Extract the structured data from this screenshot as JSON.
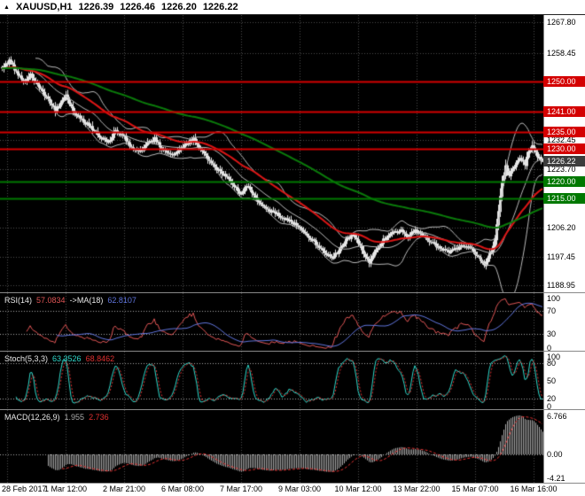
{
  "window": {
    "icon": "▲",
    "symbol": "XAUUSD,H1",
    "open": "1226.39",
    "high": "1226.46",
    "low": "1226.20",
    "close": "1226.22"
  },
  "colors": {
    "background": "#000000",
    "grid": "#4A4A4A",
    "axis_bg": "#FFFFFF",
    "axis_text": "#000000",
    "candle": "#E6E6E6",
    "bollinger": "#B8B8B8",
    "ema_fast": "#DD1515",
    "ema_slow": "#0A7A0A",
    "resistance": "#D40000",
    "support": "#007800",
    "tag_resistance": "#D40000",
    "tag_support": "#007800",
    "tag_current": "#3C3C3C",
    "level_line": "#A8A8A8",
    "rsi_main": "#E05555",
    "rsi_ma": "#5F74DC",
    "stoch_k": "#2FD9CB",
    "stoch_d": "#E03030",
    "macd_hist": "#ABABAB",
    "macd_signal": "#E03030"
  },
  "chart_data": [
    {
      "type": "candlestick",
      "symbol": "XAUUSD",
      "timeframe": "H1",
      "bars_total": 306,
      "x_axis": {
        "labels": [
          {
            "bar": 3,
            "text": "28 Feb 2017"
          },
          {
            "bar": 36,
            "text": "1 Mar 12:00"
          },
          {
            "bar": 69,
            "text": "2 Mar 21:00"
          },
          {
            "bar": 102,
            "text": "6 Mar 08:00"
          },
          {
            "bar": 135,
            "text": "7 Mar 17:00"
          },
          {
            "bar": 168,
            "text": "9 Mar 03:00"
          },
          {
            "bar": 201,
            "text": "10 Mar 12:00"
          },
          {
            "bar": 234,
            "text": "13 Mar 22:00"
          },
          {
            "bar": 267,
            "text": "15 Mar 07:00"
          },
          {
            "bar": 300,
            "text": "16 Mar 16:00"
          }
        ]
      },
      "y_axis": {
        "min": 1186.6,
        "max": 1270.0,
        "ticks": [
          {
            "price": 1267.8,
            "label": "1267.80"
          },
          {
            "price": 1258.45,
            "label": "1258.45"
          },
          {
            "price": 1232.45,
            "label": "1232.45"
          },
          {
            "price": 1223.7,
            "label": "1223.70"
          },
          {
            "price": 1206.2,
            "label": "1206.20"
          },
          {
            "price": 1197.45,
            "label": "1197.45"
          },
          {
            "price": 1188.95,
            "label": "1188.95"
          }
        ]
      },
      "price_tags": [
        {
          "price": 1250.0,
          "label": "1250.00",
          "role": "resistance"
        },
        {
          "price": 1241.0,
          "label": "1241.00",
          "role": "resistance"
        },
        {
          "price": 1235.0,
          "label": "1235.00",
          "role": "resistance"
        },
        {
          "price": 1230.0,
          "label": "1230.00",
          "role": "resistance"
        },
        {
          "price": 1226.22,
          "label": "1226.22",
          "role": "current"
        },
        {
          "price": 1220.0,
          "label": "1220.00",
          "role": "support"
        },
        {
          "price": 1215.0,
          "label": "1215.00",
          "role": "support"
        }
      ],
      "overlays": [
        "Bollinger Bands(20,2)",
        "MA fast red",
        "MA slow green"
      ],
      "price_path": [
        [
          0,
          1254.0
        ],
        [
          4,
          1256.5
        ],
        [
          8,
          1253.0
        ],
        [
          12,
          1250.0
        ],
        [
          16,
          1252.0
        ],
        [
          21,
          1248.0
        ],
        [
          26,
          1244.5
        ],
        [
          30,
          1241.5
        ],
        [
          33,
          1244.0
        ],
        [
          36,
          1246.0
        ],
        [
          40,
          1241.0
        ],
        [
          45,
          1238.5
        ],
        [
          50,
          1236.5
        ],
        [
          55,
          1233.5
        ],
        [
          60,
          1232.0
        ],
        [
          64,
          1235.5
        ],
        [
          68,
          1234.0
        ],
        [
          72,
          1231.0
        ],
        [
          77,
          1229.0
        ],
        [
          82,
          1231.5
        ],
        [
          86,
          1233.0
        ],
        [
          90,
          1230.0
        ],
        [
          95,
          1228.0
        ],
        [
          99,
          1229.5
        ],
        [
          103,
          1231.0
        ],
        [
          108,
          1233.0
        ],
        [
          112,
          1229.5
        ],
        [
          117,
          1226.0
        ],
        [
          122,
          1223.5
        ],
        [
          127,
          1221.0
        ],
        [
          131,
          1218.5
        ],
        [
          134,
          1216.5
        ],
        [
          138,
          1219.0
        ],
        [
          142,
          1216.0
        ],
        [
          146,
          1213.5
        ],
        [
          151,
          1211.5
        ],
        [
          156,
          1210.0
        ],
        [
          161,
          1208.5
        ],
        [
          166,
          1207.0
        ],
        [
          171,
          1204.5
        ],
        [
          176,
          1202.0
        ],
        [
          181,
          1199.5
        ],
        [
          186,
          1197.0
        ],
        [
          190,
          1199.5
        ],
        [
          194,
          1202.5
        ],
        [
          198,
          1204.0
        ],
        [
          201,
          1201.5
        ],
        [
          204,
          1198.5
        ],
        [
          207,
          1196.0
        ],
        [
          211,
          1199.5
        ],
        [
          215,
          1202.5
        ],
        [
          220,
          1204.5
        ],
        [
          225,
          1205.5
        ],
        [
          229,
          1203.5
        ],
        [
          233,
          1205.5
        ],
        [
          238,
          1203.5
        ],
        [
          243,
          1201.5
        ],
        [
          248,
          1199.5
        ],
        [
          253,
          1199.0
        ],
        [
          258,
          1200.5
        ],
        [
          262,
          1201.0
        ],
        [
          266,
          1199.0
        ],
        [
          269,
          1197.0
        ],
        [
          272,
          1195.0
        ],
        [
          274,
          1197.5
        ],
        [
          276,
          1199.5
        ],
        [
          278,
          1203.0
        ],
        [
          280,
          1211.0
        ],
        [
          282,
          1220.0
        ],
        [
          284,
          1224.5
        ],
        [
          286,
          1222.0
        ],
        [
          289,
          1225.0
        ],
        [
          292,
          1227.5
        ],
        [
          295,
          1225.5
        ],
        [
          297,
          1229.0
        ],
        [
          299,
          1231.0
        ],
        [
          301,
          1228.5
        ],
        [
          303,
          1227.0
        ],
        [
          305,
          1226.2
        ]
      ]
    },
    {
      "type": "line",
      "name": "RSI",
      "label": "RSI(14)",
      "value": "57.0834",
      "ma_label": "->MA(18)",
      "ma_value": "62.8107",
      "period": 14,
      "ma_period": 18,
      "levels": [
        30,
        70
      ],
      "y_axis": {
        "min": 0,
        "max": 100,
        "ticks": [
          {
            "value": 100,
            "label": "100"
          },
          {
            "value": 70,
            "label": "70"
          },
          {
            "value": 30,
            "label": "30"
          },
          {
            "value": 0,
            "label": "0"
          }
        ]
      }
    },
    {
      "type": "line",
      "name": "Stochastic",
      "label": "Stoch(5,3,3)",
      "k_value": "63.3526",
      "d_value": "68.8462",
      "k_period": 5,
      "slowing": 3,
      "d_period": 3,
      "levels": [
        20,
        80
      ],
      "y_axis": {
        "min": 0,
        "max": 100,
        "ticks": [
          {
            "value": 100,
            "label": "100"
          },
          {
            "value": 80,
            "label": "80"
          },
          {
            "value": 50,
            "label": "50"
          },
          {
            "value": 20,
            "label": "20"
          },
          {
            "value": 0,
            "label": "0"
          }
        ]
      }
    },
    {
      "type": "bar",
      "name": "MACD",
      "label": "MACD(12,26,9)",
      "main_value": "1.955",
      "signal_value": "2.736",
      "fast": 12,
      "slow": 26,
      "signal": 9,
      "y_axis": {
        "min": -5.0,
        "max": 7.8,
        "ticks": [
          {
            "value": 6.766,
            "label": "6.766"
          },
          {
            "value": 0,
            "label": "0.00"
          },
          {
            "value": -4.21,
            "label": "-4.21"
          }
        ]
      }
    }
  ]
}
